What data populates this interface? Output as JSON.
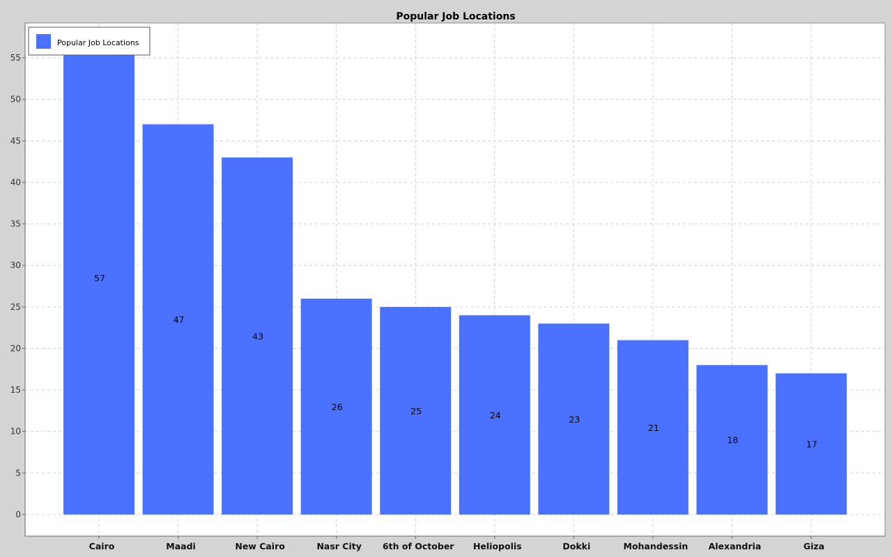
{
  "chart_data": {
    "type": "bar",
    "title": "Popular Job Locations",
    "xlabel": "",
    "ylabel": "",
    "categories": [
      "Cairo",
      "Maadi",
      "New Cairo",
      "Nasr City",
      "6th of October",
      "Heliopolis",
      "Dokki",
      "Mohandessin",
      "Alexandria",
      "Giza"
    ],
    "series": [
      {
        "name": "Popular Job Locations",
        "values": [
          57,
          47,
          43,
          26,
          25,
          24,
          23,
          21,
          18,
          17
        ],
        "color": "#4a72ff"
      }
    ],
    "ylim": [
      -2.6,
      59.2
    ],
    "yticks": [
      0,
      5,
      10,
      15,
      20,
      25,
      30,
      35,
      40,
      45,
      50,
      55
    ],
    "grid": true,
    "legend": "top-left",
    "data_labels": true
  },
  "colors": {
    "background": "#d4d4d4",
    "plot_background": "#ffffff",
    "gridline": "#d0d0d0",
    "bar": "#4a72ff"
  }
}
